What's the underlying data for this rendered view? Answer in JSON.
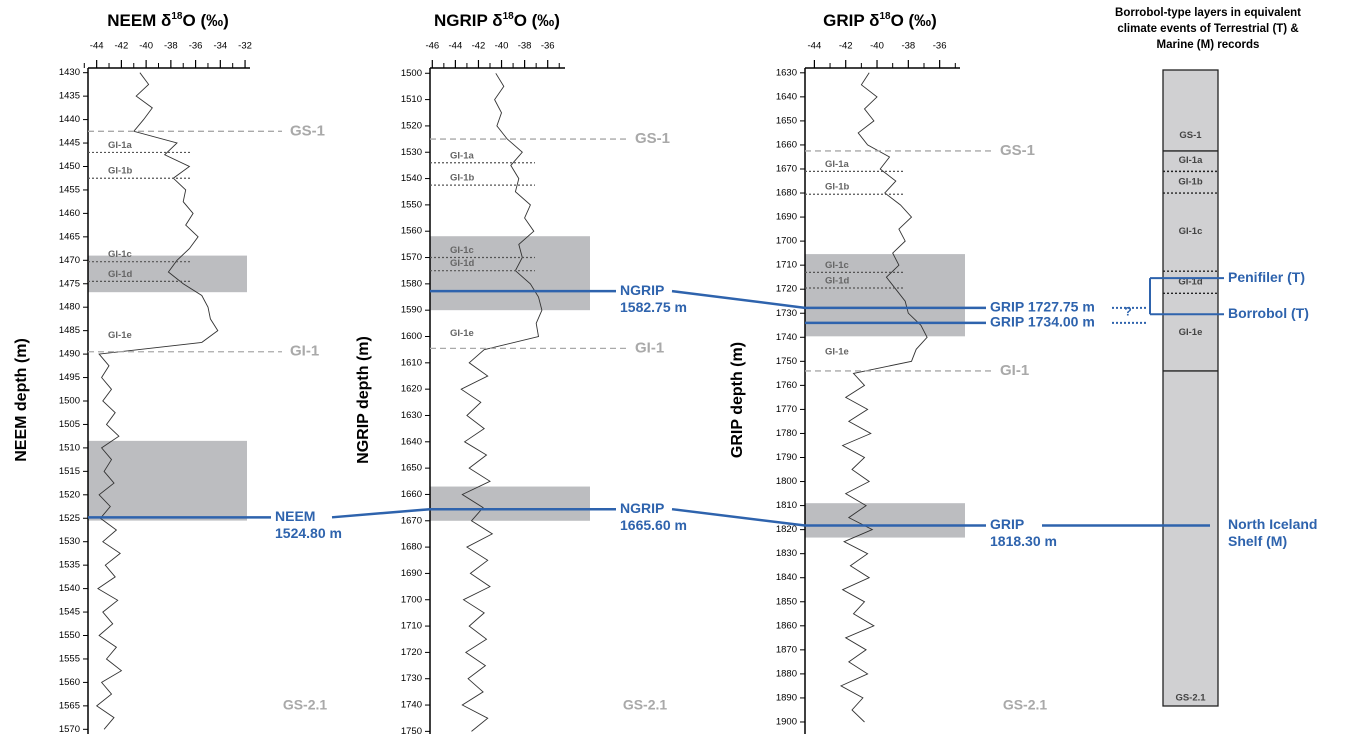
{
  "chart_data": [
    {
      "type": "line",
      "title": [
        "NEEM δ",
        "18",
        "O (‰)"
      ],
      "ylabel": "NEEM depth (m)",
      "bottom_label": "GS-2.1",
      "color": "#333333",
      "xlim": [
        -44.7,
        -31.6
      ],
      "xticks": [
        -44,
        -42,
        -40,
        -38,
        -36,
        -34,
        -32
      ],
      "xminorticks": [
        -45,
        -43,
        -41,
        -39,
        -37,
        -35,
        -33
      ],
      "ylim": [
        1429,
        1571
      ],
      "yticks": [
        1430,
        1435,
        1440,
        1445,
        1450,
        1455,
        1460,
        1465,
        1470,
        1475,
        1480,
        1485,
        1490,
        1495,
        1500,
        1505,
        1510,
        1515,
        1520,
        1525,
        1530,
        1535,
        1540,
        1545,
        1550,
        1555,
        1560,
        1565,
        1570
      ],
      "depth": [
        1430,
        1432.5,
        1435,
        1437.5,
        1440,
        1442.5,
        1445,
        1447.5,
        1450,
        1452.5,
        1455,
        1457.5,
        1460,
        1462.5,
        1465,
        1467.5,
        1470,
        1472.5,
        1475,
        1477.5,
        1480,
        1482.5,
        1485,
        1487.5,
        1490,
        1492.5,
        1495,
        1497.5,
        1500,
        1502.5,
        1505,
        1507.5,
        1510,
        1512.5,
        1515,
        1517.5,
        1520,
        1522.5,
        1525,
        1527.5,
        1530,
        1532.5,
        1535,
        1537.5,
        1540,
        1542.5,
        1545,
        1547.5,
        1550,
        1552.5,
        1555,
        1557.5,
        1560,
        1562.5,
        1565,
        1567.5,
        1570
      ],
      "values": [
        -40.5,
        -39.8,
        -40.8,
        -39.5,
        -40.2,
        -41,
        -37.5,
        -38.5,
        -36.5,
        -37.8,
        -36.8,
        -37,
        -36.2,
        -36.8,
        -35.8,
        -36.5,
        -37.5,
        -38.2,
        -37,
        -35.5,
        -35,
        -34.8,
        -34.2,
        -35.5,
        -43.8,
        -43,
        -43.6,
        -42.8,
        -43.5,
        -42.5,
        -43.2,
        -42.2,
        -43.6,
        -42.8,
        -43.4,
        -42.6,
        -43.8,
        -42.9,
        -43.7,
        -42.4,
        -43.5,
        -42.1,
        -43.3,
        -42.5,
        -43.9,
        -42.3,
        -43.5,
        -42.7,
        -43.8,
        -42.4,
        -43.2,
        -42,
        -43.6,
        -42.8,
        -44,
        -42.6,
        -43.4
      ],
      "bands": [
        [
          1469,
          1476.8
        ],
        [
          1508.5,
          1525.5
        ]
      ],
      "events": [
        {
          "label": "GS-1",
          "depth": 1442.5,
          "line": "dashed"
        },
        {
          "label": "GI-1a",
          "depth": 1447,
          "line": "dotted"
        },
        {
          "label": "GI-1b",
          "depth": 1452.5,
          "line": "dotted"
        },
        {
          "label": "GI-1c",
          "depth": 1470.3,
          "line": "dotted"
        },
        {
          "label": "GI-1d",
          "depth": 1474.5,
          "line": "dotted"
        },
        {
          "label": "GI-1e",
          "depth": 1487.5,
          "line": "none"
        },
        {
          "label": "GI-1",
          "depth": 1489.5,
          "line": "dashed"
        }
      ],
      "tephra": [
        {
          "depth": 1524.8,
          "label": [
            "NEEM",
            "1524.80 m"
          ]
        }
      ]
    },
    {
      "type": "line",
      "title": [
        "NGRIP δ",
        "18",
        "O (‰)"
      ],
      "ylabel": "NGRIP depth (m)",
      "bottom_label": "GS-2.1",
      "color": "#333333",
      "xlim": [
        -46.2,
        -34.5
      ],
      "xticks": [
        -46,
        -44,
        -42,
        -40,
        -38,
        -36
      ],
      "xminorticks": [
        -45,
        -43,
        -41,
        -39,
        -37,
        -35
      ],
      "ylim": [
        1498,
        1751
      ],
      "yticks": [
        1500,
        1510,
        1520,
        1530,
        1540,
        1550,
        1560,
        1570,
        1580,
        1590,
        1600,
        1610,
        1620,
        1630,
        1640,
        1650,
        1660,
        1670,
        1680,
        1690,
        1700,
        1710,
        1720,
        1730,
        1740,
        1750
      ],
      "depth": [
        1500,
        1505,
        1510,
        1515,
        1520,
        1525,
        1530,
        1535,
        1540,
        1545,
        1550,
        1555,
        1560,
        1565,
        1570,
        1575,
        1580,
        1585,
        1590,
        1595,
        1600,
        1605,
        1610,
        1615,
        1620,
        1625,
        1630,
        1635,
        1640,
        1645,
        1650,
        1655,
        1660,
        1665,
        1670,
        1675,
        1680,
        1685,
        1690,
        1695,
        1700,
        1705,
        1710,
        1715,
        1720,
        1725,
        1730,
        1735,
        1740,
        1745,
        1750
      ],
      "values": [
        -40.5,
        -39.8,
        -40.6,
        -40,
        -40.4,
        -39.5,
        -38.2,
        -39.2,
        -38.5,
        -38.8,
        -37.5,
        -38,
        -37.2,
        -38.5,
        -38.2,
        -38.8,
        -37.5,
        -36.8,
        -36.5,
        -37,
        -36.8,
        -41.5,
        -42.8,
        -41.2,
        -43.5,
        -41.8,
        -43,
        -41.5,
        -43.2,
        -41.3,
        -42.8,
        -41,
        -43.4,
        -41.6,
        -42.6,
        -40.8,
        -43,
        -41.2,
        -42.7,
        -41,
        -43.3,
        -41.5,
        -42.8,
        -41.3,
        -43.1,
        -41.4,
        -42.9,
        -41.6,
        -43.4,
        -41.2,
        -42.6
      ],
      "bands": [
        [
          1561.9,
          1590
        ],
        [
          1657,
          1670
        ]
      ],
      "events": [
        {
          "label": "GS-1",
          "depth": 1525,
          "line": "dashed"
        },
        {
          "label": "GI-1a",
          "depth": 1534,
          "line": "dotted"
        },
        {
          "label": "GI-1b",
          "depth": 1542.5,
          "line": "dotted"
        },
        {
          "label": "GI-1c",
          "depth": 1570,
          "line": "dotted"
        },
        {
          "label": "GI-1d",
          "depth": 1575,
          "line": "dotted"
        },
        {
          "label": "GI-1e",
          "depth": 1601.5,
          "line": "none"
        },
        {
          "label": "GI-1",
          "depth": 1604.5,
          "line": "dashed"
        }
      ],
      "tephra": [
        {
          "depth": 1582.75,
          "label": [
            "NGRIP",
            "1582.75 m"
          ]
        },
        {
          "depth": 1665.6,
          "label": [
            "NGRIP",
            "1665.60 m"
          ]
        }
      ]
    },
    {
      "type": "line",
      "title": [
        "GRIP δ",
        "18",
        "O (‰)"
      ],
      "ylabel": "GRIP depth (m)",
      "bottom_label": "GS-2.1",
      "color": "#333333",
      "xlim": [
        -44.6,
        -34.7
      ],
      "xticks": [
        -44,
        -42,
        -40,
        -38,
        -36
      ],
      "xminorticks": [
        -43,
        -41,
        -39,
        -37,
        -35
      ],
      "ylim": [
        1628,
        1905
      ],
      "yticks": [
        1630,
        1640,
        1650,
        1660,
        1670,
        1680,
        1690,
        1700,
        1710,
        1720,
        1730,
        1740,
        1750,
        1760,
        1770,
        1780,
        1790,
        1800,
        1810,
        1820,
        1830,
        1840,
        1850,
        1860,
        1870,
        1880,
        1890,
        1900
      ],
      "depth": [
        1630,
        1635,
        1640,
        1645,
        1650,
        1655,
        1660,
        1665,
        1670,
        1675,
        1680,
        1685,
        1690,
        1695,
        1700,
        1705,
        1710,
        1715,
        1720,
        1725,
        1730,
        1735,
        1740,
        1745,
        1750,
        1755,
        1760,
        1765,
        1770,
        1775,
        1780,
        1785,
        1790,
        1795,
        1800,
        1805,
        1810,
        1815,
        1820,
        1825,
        1830,
        1835,
        1840,
        1845,
        1850,
        1855,
        1860,
        1865,
        1870,
        1875,
        1880,
        1885,
        1890,
        1895,
        1900
      ],
      "values": [
        -40.5,
        -41,
        -40,
        -40.8,
        -40.2,
        -41.2,
        -40.6,
        -39.2,
        -39.8,
        -38.8,
        -39.5,
        -38.5,
        -37.8,
        -38.6,
        -38.2,
        -39,
        -38.6,
        -39.4,
        -38.8,
        -38.2,
        -38,
        -37.2,
        -36.8,
        -37.5,
        -37.8,
        -41.5,
        -40.8,
        -42,
        -40.6,
        -41.8,
        -40.4,
        -42.2,
        -40.8,
        -41.6,
        -40.5,
        -42,
        -40.7,
        -41.8,
        -40.3,
        -42.1,
        -40.6,
        -41.7,
        -40.5,
        -42.2,
        -40.8,
        -41.5,
        -40.2,
        -42,
        -40.7,
        -41.8,
        -40.6,
        -42.3,
        -40.9,
        -41.6,
        -40.8
      ],
      "bands": [
        [
          1705.4,
          1739.6
        ],
        [
          1809,
          1823.3
        ]
      ],
      "events": [
        {
          "label": "GS-1",
          "depth": 1662.5,
          "line": "dashed"
        },
        {
          "label": "GI-1a",
          "depth": 1671,
          "line": "dotted"
        },
        {
          "label": "GI-1b",
          "depth": 1680.5,
          "line": "dotted"
        },
        {
          "label": "GI-1c",
          "depth": 1713,
          "line": "dotted"
        },
        {
          "label": "GI-1d",
          "depth": 1719.5,
          "line": "dotted"
        },
        {
          "label": "GI-1e",
          "depth": 1749,
          "line": "none"
        },
        {
          "label": "GI-1",
          "depth": 1754,
          "line": "dashed"
        }
      ],
      "tephra": [
        {
          "depth": 1727.75,
          "label": [
            "GRIP 1727.75 m"
          ]
        },
        {
          "depth": 1734.0,
          "label": [
            "GRIP 1734.00 m"
          ]
        },
        {
          "depth": 1818.3,
          "label": [
            "GRIP",
            "1818.30 m"
          ]
        }
      ]
    },
    {
      "type": "column",
      "title": [
        "Borrobol-type layers in equivalent",
        "climate events of Terrestrial (T) &",
        "Marine (M) records"
      ],
      "uncertain_mark": "?",
      "zones": [
        {
          "label": "GS-1",
          "depth": 1656
        },
        {
          "label": "GI-1a",
          "depth": 1666.5
        },
        {
          "label": "GI-1b",
          "depth": 1675.5
        },
        {
          "label": "GI-1c",
          "depth": 1696
        },
        {
          "label": "GI-1d",
          "depth": 1717
        },
        {
          "label": "GI-1e",
          "depth": 1738
        },
        {
          "label": "GS-2.1",
          "depth": 1890
        }
      ],
      "boundaries": [
        {
          "depth": 1662.5,
          "line": "solid"
        },
        {
          "depth": 1671,
          "line": "dotted"
        },
        {
          "depth": 1680,
          "line": "dotted"
        },
        {
          "depth": 1712.5,
          "line": "dotted"
        },
        {
          "depth": 1721.7,
          "line": "dotted"
        },
        {
          "depth": 1754,
          "line": "solid"
        }
      ],
      "events": [
        {
          "label": [
            "Penifiler (T)"
          ],
          "depth": 1715.4
        },
        {
          "label": [
            "Borrobol (T)"
          ],
          "depth": 1730.4
        },
        {
          "label": [
            "North Iceland",
            "Shelf (M)"
          ],
          "depth": 1818.3
        }
      ]
    }
  ]
}
